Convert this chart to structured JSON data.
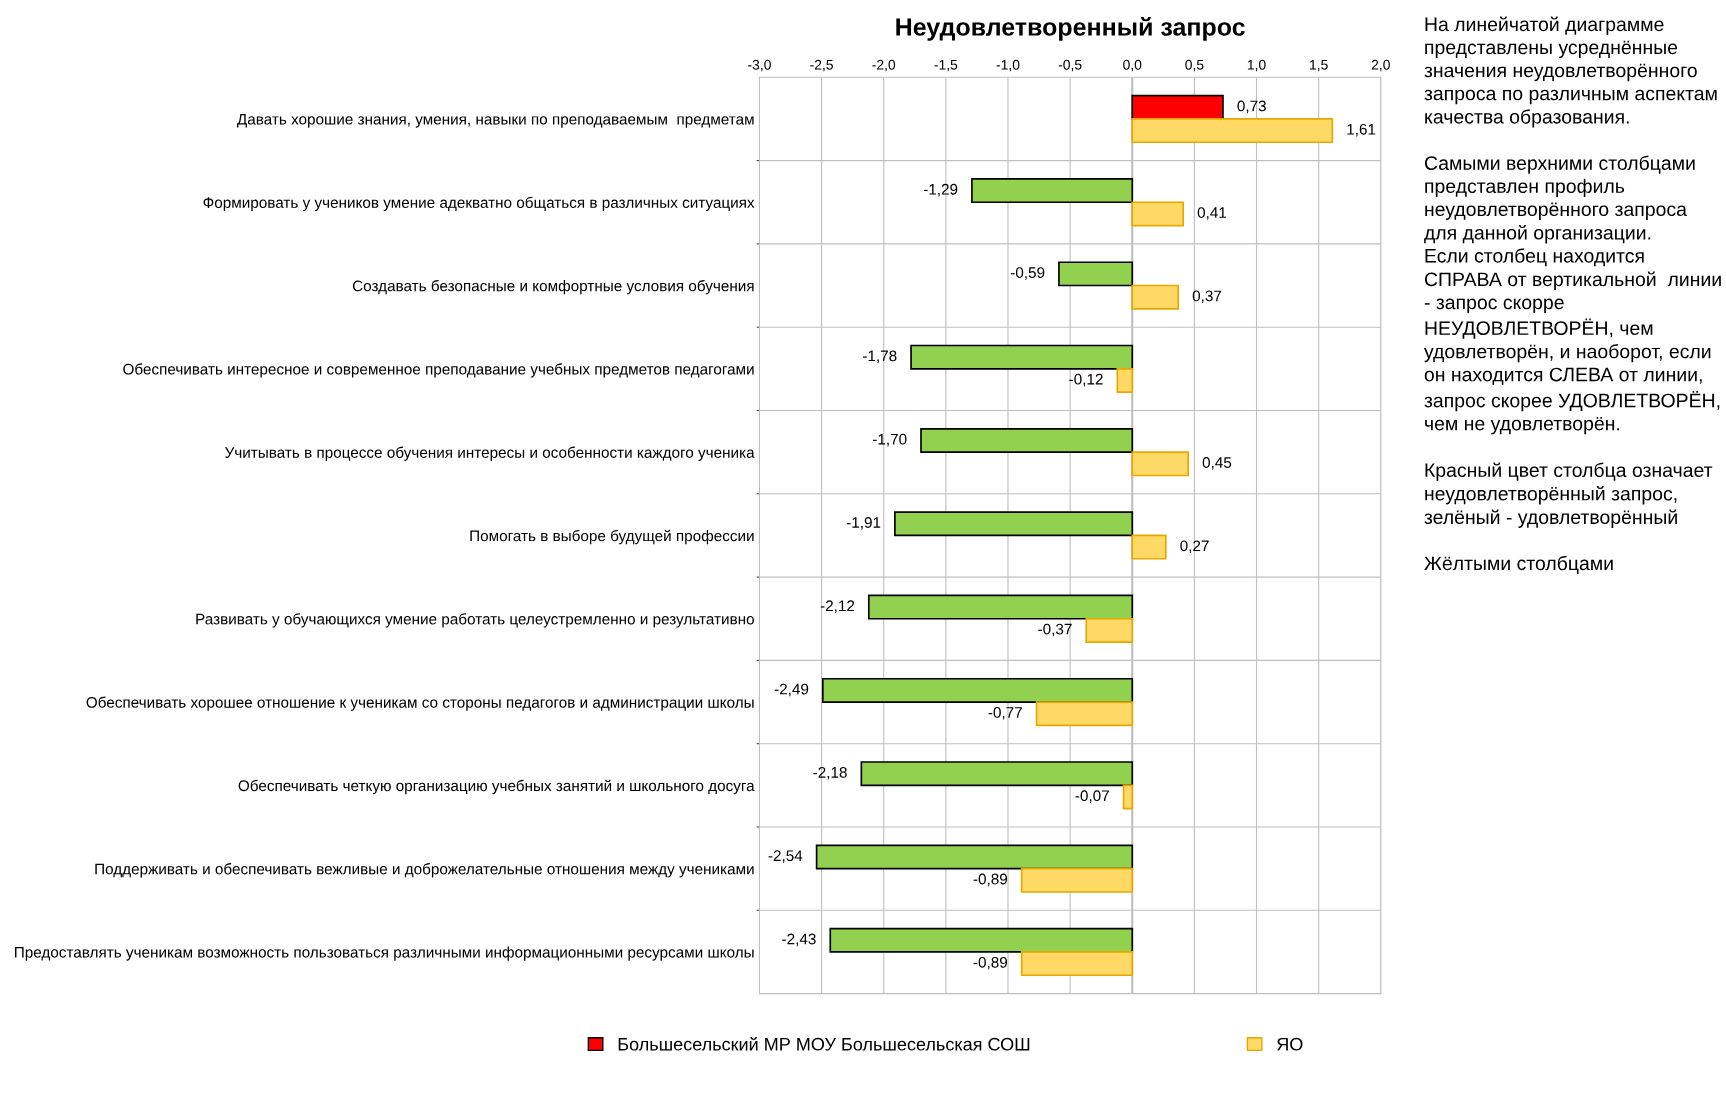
{
  "chart_data": {
    "type": "bar",
    "orientation": "horizontal",
    "title": "Неудовлетворенный запрос",
    "categories": [
      "Давать хорошие знания, умения, навыки по преподаваемым  предметам",
      "Формировать у учеников умение адекватно общаться в различных ситуациях",
      "Создавать безопасные и комфортные условия обучения",
      "Обеспечивать интересное и современное преподавание учебных предметов педагогами",
      "Учитывать в процессе обучения интересы и особенности каждого ученика",
      "Помогать в выборе будущей профессии",
      "Развивать у обучающихся умение работать целеустремленно и результативно",
      "Обеспечивать хорошее отношение к ученикам со стороны педагогов и администрации школы",
      "Обеспечивать четкую организацию учебных занятий и школьного досуга",
      "Поддерживать и обеспечивать вежливые и доброжелательные отношения между учениками",
      "Предоставлять ученикам возможность пользоваться различными информационными ресурсами школы"
    ],
    "series": [
      {
        "name": "Большесельский МР МОУ Большесельская СОШ",
        "color": "#ff0000",
        "colors": [
          "#ff0000",
          "#92d050",
          "#92d050",
          "#92d050",
          "#92d050",
          "#92d050",
          "#92d050",
          "#92d050",
          "#92d050",
          "#92d050",
          "#92d050"
        ],
        "values": [
          0.73,
          -1.29,
          -0.59,
          -1.78,
          -1.7,
          -1.91,
          -2.12,
          -2.49,
          -2.18,
          -2.54,
          -2.43
        ],
        "value_labels": [
          "0,73",
          "-1,29",
          "-0,59",
          "-1,78",
          "-1,70",
          "-1,91",
          "-2,12",
          "-2,49",
          "-2,18",
          "-2,54",
          "-2,43"
        ]
      },
      {
        "name": "ЯО",
        "color": "#ffd966",
        "values": [
          1.61,
          0.41,
          0.37,
          -0.12,
          0.45,
          0.27,
          -0.37,
          -0.77,
          -0.07,
          -0.89,
          -0.89
        ],
        "value_labels": [
          "1,61",
          "0,41",
          "0,37",
          "-0,12",
          "0,45",
          "0,27",
          "-0,37",
          "-0,77",
          "-0,07",
          "-0,89",
          "-0,89"
        ]
      }
    ],
    "xlim": [
      -3.0,
      2.0
    ],
    "xticks": [
      {
        "value": -3.0,
        "label": "-3,0"
      },
      {
        "value": -2.5,
        "label": "-2,5"
      },
      {
        "value": -2.0,
        "label": "-2,0"
      },
      {
        "value": -1.5,
        "label": "-1,5"
      },
      {
        "value": -1.0,
        "label": "-1,0"
      },
      {
        "value": -0.5,
        "label": "-0,5"
      },
      {
        "value": 0.0,
        "label": "0,0"
      },
      {
        "value": 0.5,
        "label": "0,5"
      },
      {
        "value": 1.0,
        "label": "1,0"
      },
      {
        "value": 1.5,
        "label": "1,5"
      },
      {
        "value": 2.0,
        "label": "2,0"
      }
    ],
    "grid": true,
    "legend": "bottom",
    "annotations": [
      "На линейчатой диаграмме представлены усреднённые значения неудовлетворённого запроса по различным аспектам качества образования.\n\nСамыми верхними столбцами представлен профиль неудовлетворённого запроса для данной организации.\nЕсли столбец находится СПРАВА от вертикальной  линии - запрос скорре НЕУДОВЛЕТВОРЁН, чем удовлетворён, и наоборот, если он находится СЛЕВА от линии, запрос скорее УДОВЛЕТВОРЁН, чем не удовлетворён.\n\nКрасный цвет столбца означает неудовлетворённый запрос, зелёный - удовлетворённый\n\nЖёлтыми столбцами"
    ]
  }
}
